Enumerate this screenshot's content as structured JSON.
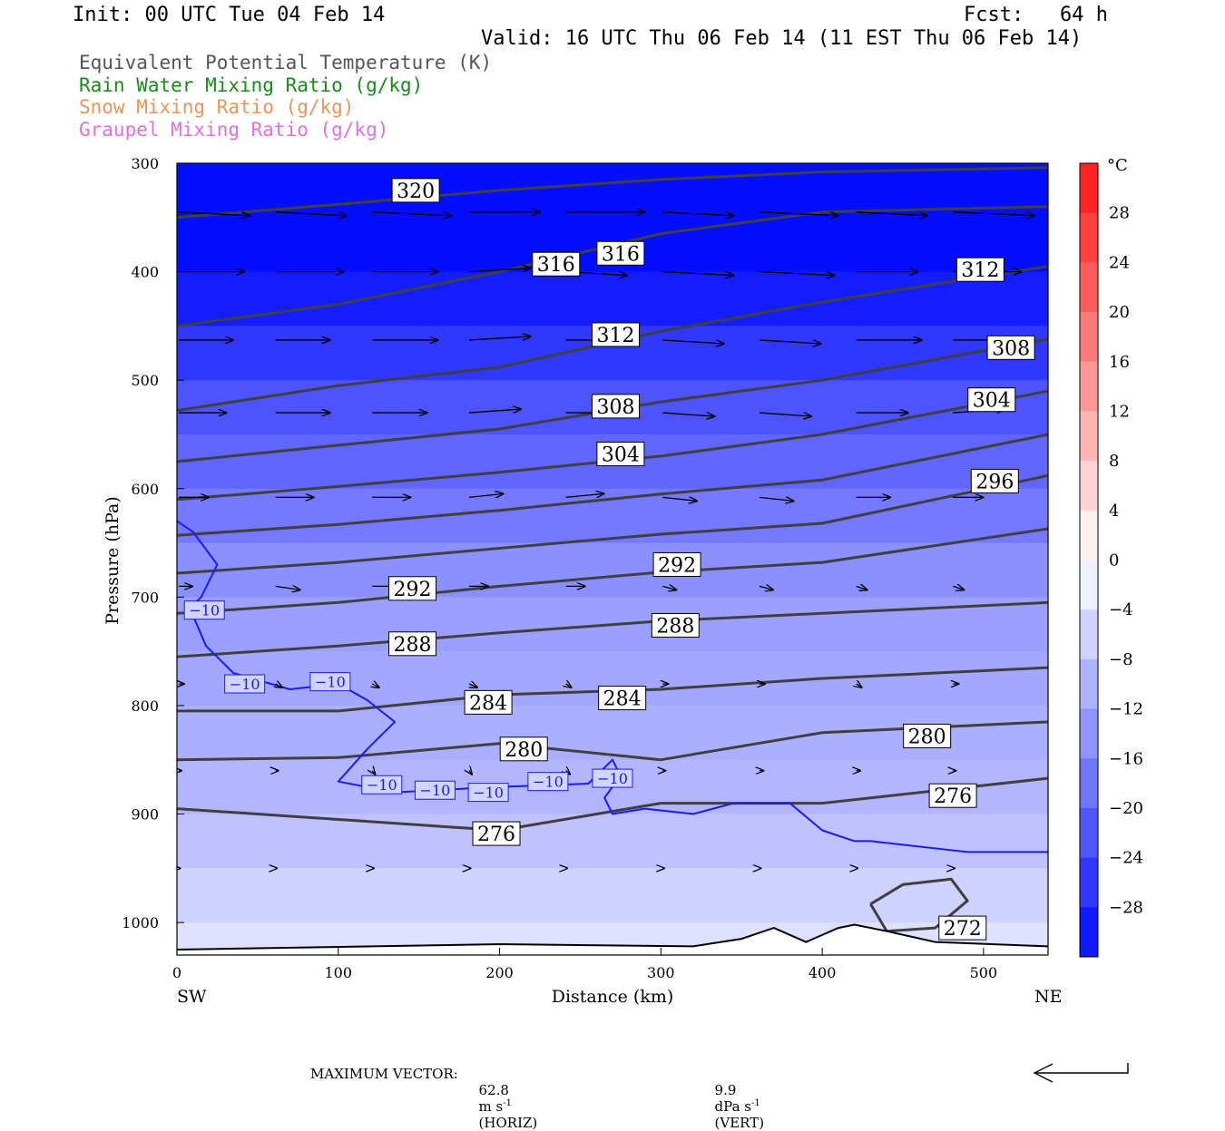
{
  "header": {
    "init": "Init: 00 UTC Tue 04 Feb 14",
    "fcst": "Fcst:   64 h",
    "valid": "Valid: 16 UTC Thu 06 Feb 14 (11 EST Thu 06 Feb 14)"
  },
  "titles": [
    {
      "text": "Equivalent Potential Temperature (K)",
      "color": "#555555"
    },
    {
      "text": "Rain Water Mixing Ratio (g/kg)",
      "color": "#1a8a1a"
    },
    {
      "text": "Snow Mixing Ratio (g/kg)",
      "color": "#e8955a"
    },
    {
      "text": "Graupel Mixing Ratio (g/kg)",
      "color": "#e070e0"
    }
  ],
  "chart_data": {
    "type": "cross-section",
    "xlabel": "Distance (km)",
    "ylabel": "Pressure (hPa)",
    "xlim": [
      0,
      540
    ],
    "ylim": [
      1030,
      300
    ],
    "x_ticks": [
      0,
      100,
      200,
      300,
      400,
      500
    ],
    "y_ticks": [
      300,
      400,
      500,
      600,
      700,
      800,
      900,
      1000
    ],
    "x_end_labels": {
      "left": "SW",
      "right": "NE"
    },
    "colorbar": {
      "unit": "°C",
      "ticks": [
        "28",
        "24",
        "20",
        "16",
        "12",
        "8",
        "4",
        "0",
        "−4",
        "−8",
        "−12",
        "−16",
        "−20",
        "−24",
        "−28"
      ],
      "range": [
        -32,
        32
      ]
    },
    "temperature_shading": [
      {
        "p": 300,
        "t": -32
      },
      {
        "p": 400,
        "t": -31
      },
      {
        "p": 450,
        "t": -28
      },
      {
        "p": 500,
        "t": -24
      },
      {
        "p": 550,
        "t": -21
      },
      {
        "p": 600,
        "t": -19
      },
      {
        "p": 650,
        "t": -16
      },
      {
        "p": 700,
        "t": -13
      },
      {
        "p": 750,
        "t": -12
      },
      {
        "p": 800,
        "t": -11
      },
      {
        "p": 850,
        "t": -10
      },
      {
        "p": 900,
        "t": -9
      },
      {
        "p": 950,
        "t": -7
      },
      {
        "p": 1000,
        "t": -5
      },
      {
        "p": 1030,
        "t": -3
      }
    ],
    "theta_e_contours": [
      {
        "value": 320,
        "x": [
          0,
          100,
          200,
          300,
          400,
          540
        ],
        "p": [
          350,
          338,
          325,
          315,
          308,
          304
        ]
      },
      {
        "value": 316,
        "x": [
          0,
          100,
          200,
          300,
          400,
          540
        ],
        "p": [
          450,
          430,
          400,
          365,
          345,
          340
        ]
      },
      {
        "value": 312,
        "x": [
          0,
          100,
          200,
          300,
          400,
          540
        ],
        "p": [
          528,
          505,
          488,
          455,
          428,
          395
        ]
      },
      {
        "value": 308,
        "x": [
          0,
          100,
          200,
          300,
          400,
          540
        ],
        "p": [
          575,
          560,
          545,
          520,
          500,
          462
        ]
      },
      {
        "value": 304,
        "x": [
          0,
          100,
          200,
          300,
          400,
          540
        ],
        "p": [
          610,
          598,
          585,
          570,
          550,
          510
        ]
      },
      {
        "value": 300,
        "x": [
          0,
          100,
          200,
          300,
          400,
          540
        ],
        "p": [
          643,
          633,
          620,
          605,
          592,
          550
        ]
      },
      {
        "value": 296,
        "x": [
          0,
          100,
          200,
          300,
          400,
          540
        ],
        "p": [
          678,
          668,
          655,
          642,
          632,
          588
        ]
      },
      {
        "value": 292,
        "x": [
          0,
          100,
          200,
          300,
          400,
          540
        ],
        "p": [
          715,
          705,
          690,
          677,
          668,
          637
        ]
      },
      {
        "value": 288,
        "x": [
          0,
          100,
          200,
          300,
          400,
          540
        ],
        "p": [
          755,
          745,
          733,
          722,
          715,
          705
        ]
      },
      {
        "value": 284,
        "x": [
          0,
          100,
          200,
          300,
          400,
          540
        ],
        "p": [
          805,
          805,
          790,
          785,
          775,
          765
        ]
      },
      {
        "value": 280,
        "x": [
          0,
          100,
          200,
          300,
          400,
          540
        ],
        "p": [
          850,
          848,
          835,
          850,
          825,
          815
        ]
      },
      {
        "value": 276,
        "x": [
          0,
          100,
          200,
          300,
          400,
          540
        ],
        "p": [
          895,
          905,
          915,
          890,
          890,
          867
        ]
      },
      {
        "value": 272,
        "x": [
          430,
          450,
          480,
          490,
          470,
          440,
          430
        ],
        "p": [
          983,
          965,
          960,
          980,
          1005,
          1008,
          983
        ]
      }
    ],
    "contour_labels": [
      {
        "text": "320",
        "x": 148,
        "p": 325
      },
      {
        "text": "316",
        "x": 235,
        "p": 393
      },
      {
        "text": "316",
        "x": 275,
        "p": 383
      },
      {
        "text": "312",
        "x": 272,
        "p": 458
      },
      {
        "text": "312",
        "x": 498,
        "p": 398
      },
      {
        "text": "308",
        "x": 272,
        "p": 524
      },
      {
        "text": "308",
        "x": 517,
        "p": 470
      },
      {
        "text": "304",
        "x": 275,
        "p": 568
      },
      {
        "text": "304",
        "x": 505,
        "p": 518
      },
      {
        "text": "296",
        "x": 507,
        "p": 593
      },
      {
        "text": "292",
        "x": 146,
        "p": 692
      },
      {
        "text": "292",
        "x": 310,
        "p": 670
      },
      {
        "text": "288",
        "x": 146,
        "p": 743
      },
      {
        "text": "288",
        "x": 309,
        "p": 726
      },
      {
        "text": "284",
        "x": 193,
        "p": 797
      },
      {
        "text": "284",
        "x": 276,
        "p": 793
      },
      {
        "text": "280",
        "x": 215,
        "p": 840
      },
      {
        "text": "280",
        "x": 465,
        "p": 828
      },
      {
        "text": "276",
        "x": 198,
        "p": 918
      },
      {
        "text": "276",
        "x": 481,
        "p": 883
      },
      {
        "text": "272",
        "x": 487,
        "p": 1005
      }
    ],
    "minus10_isotherm": {
      "value": -10,
      "x": [
        0,
        10,
        25,
        15,
        8,
        18,
        35,
        70,
        100,
        118,
        135,
        118,
        100,
        135,
        200,
        255,
        270,
        275,
        265,
        270,
        290,
        320,
        345,
        380,
        400,
        420,
        430,
        460,
        490,
        540
      ],
      "p": [
        630,
        640,
        670,
        700,
        710,
        745,
        770,
        785,
        780,
        795,
        815,
        840,
        870,
        880,
        875,
        872,
        850,
        865,
        885,
        900,
        895,
        900,
        890,
        890,
        915,
        925,
        925,
        930,
        935,
        935
      ]
    },
    "minus10_labels": [
      {
        "text": "−10",
        "x": 17,
        "p": 712
      },
      {
        "text": "−10",
        "x": 42,
        "p": 780
      },
      {
        "text": "−10",
        "x": 95,
        "p": 778
      },
      {
        "text": "−10",
        "x": 127,
        "p": 873
      },
      {
        "text": "−10",
        "x": 160,
        "p": 878
      },
      {
        "text": "−10",
        "x": 193,
        "p": 880
      },
      {
        "text": "−10",
        "x": 230,
        "p": 870
      },
      {
        "text": "−10",
        "x": 270,
        "p": 867
      }
    ],
    "wind_vectors": [
      {
        "p": 345,
        "u": [
          52,
          52,
          58,
          52,
          58,
          52,
          58,
          52,
          60
        ],
        "v": [
          1,
          1,
          1,
          0,
          0,
          1,
          1,
          1,
          1
        ]
      },
      {
        "p": 400,
        "u": [
          48,
          50,
          48,
          45,
          45,
          52,
          55,
          45,
          50
        ],
        "v": [
          0,
          0,
          0,
          -1,
          1,
          1,
          1,
          0,
          0
        ]
      },
      {
        "p": 463,
        "u": [
          40,
          40,
          48,
          45,
          45,
          45,
          45,
          48,
          45
        ],
        "v": [
          0,
          0,
          0,
          -1,
          0,
          1,
          1,
          0,
          0
        ]
      },
      {
        "p": 530,
        "u": [
          35,
          40,
          40,
          38,
          38,
          38,
          38,
          38,
          38
        ],
        "v": [
          0,
          0,
          0,
          -1,
          0,
          1,
          1,
          0,
          -1
        ]
      },
      {
        "p": 608,
        "u": [
          22,
          28,
          28,
          25,
          28,
          25,
          25,
          25,
          22
        ],
        "v": [
          0,
          0,
          0,
          -1,
          -1,
          1,
          1,
          0,
          0
        ]
      },
      {
        "p": 690,
        "u": [
          10,
          18,
          18,
          14,
          14,
          10,
          10,
          8,
          8
        ],
        "v": [
          0,
          1,
          0,
          0,
          0,
          1,
          1,
          1,
          1
        ]
      },
      {
        "p": 780,
        "u": [
          4,
          5,
          5,
          6,
          4,
          4,
          4,
          4,
          4
        ],
        "v": [
          0,
          1,
          1,
          1,
          1,
          0,
          0,
          1,
          0
        ]
      },
      {
        "p": 860,
        "u": [
          2,
          2,
          2,
          2,
          3,
          2,
          3,
          3,
          2
        ],
        "v": [
          0,
          0,
          1,
          1,
          1,
          0,
          0,
          0,
          0
        ]
      },
      {
        "p": 950,
        "u": [
          1,
          1,
          1,
          1,
          1,
          1,
          1,
          1,
          1
        ],
        "v": [
          0,
          0,
          0,
          0,
          0,
          0,
          0,
          0,
          0
        ]
      }
    ],
    "terrain": {
      "x": [
        0,
        200,
        320,
        350,
        370,
        390,
        410,
        420,
        440,
        470,
        540
      ],
      "p": [
        1025,
        1020,
        1022,
        1015,
        1005,
        1018,
        1005,
        1002,
        1008,
        1018,
        1022
      ]
    }
  },
  "footer": {
    "max_vector_label": "MAXIMUM VECTOR:",
    "horiz_value": "62.8",
    "horiz_unit": "m s",
    "horiz_exp": "-1",
    "horiz_tag": "(HORIZ)",
    "vert_value": "9.9",
    "vert_unit": "dPa s",
    "vert_exp": "-1",
    "vert_tag": "(VERT)"
  }
}
